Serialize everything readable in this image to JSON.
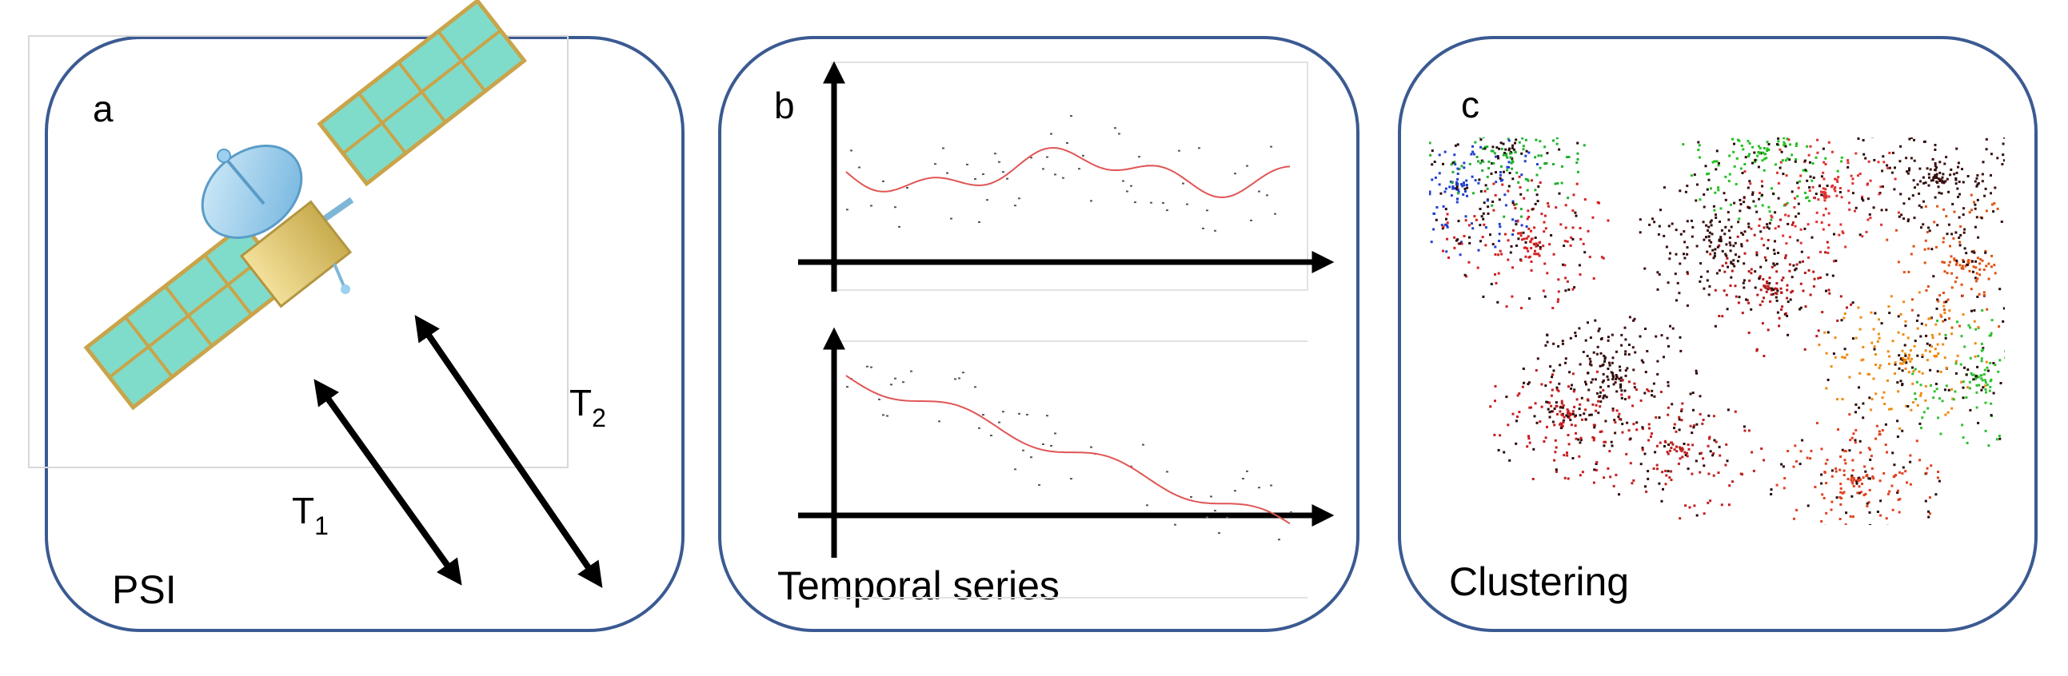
{
  "panels": [
    {
      "letter": "a",
      "caption": "PSI"
    },
    {
      "letter": "b",
      "caption": "Temporal series"
    },
    {
      "letter": "c",
      "caption": "Clustering"
    }
  ],
  "path_labels": [
    {
      "main": "T",
      "sub": "1"
    },
    {
      "main": "T",
      "sub": "2"
    }
  ],
  "colors": {
    "border": "#3b5a92",
    "solar_panel": "#7fdccb",
    "dish": "#9cd0ee",
    "bus": "#e7cf77",
    "trend_line": "#e05555",
    "points": "#555555"
  },
  "icons": [
    "satellite-icon"
  ]
}
